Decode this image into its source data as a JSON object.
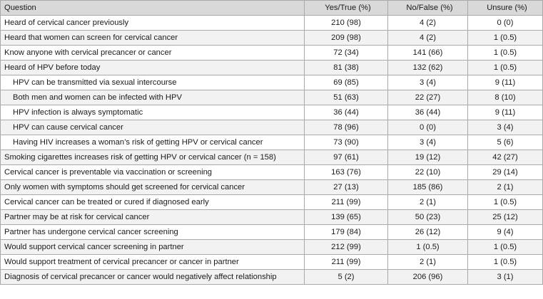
{
  "table": {
    "headers": [
      "Question",
      "Yes/True (%)",
      "No/False (%)",
      "Unsure (%)"
    ],
    "rows": [
      {
        "question": "Heard of cervical cancer previously",
        "yes": "210 (98)",
        "no": "4 (2)",
        "unsure": "0 (0)",
        "indent": false
      },
      {
        "question": "Heard that women can screen for cervical cancer",
        "yes": "209 (98)",
        "no": "4 (2)",
        "unsure": "1 (0.5)",
        "indent": false
      },
      {
        "question": "Know anyone with cervical precancer or cancer",
        "yes": "72 (34)",
        "no": "141 (66)",
        "unsure": "1 (0.5)",
        "indent": false
      },
      {
        "question": "Heard of HPV before today",
        "yes": "81 (38)",
        "no": "132 (62)",
        "unsure": "1 (0.5)",
        "indent": false
      },
      {
        "question": "HPV can be transmitted via sexual intercourse",
        "yes": "69 (85)",
        "no": "3 (4)",
        "unsure": "9 (11)",
        "indent": true
      },
      {
        "question": "Both men and women can be infected with HPV",
        "yes": "51 (63)",
        "no": "22 (27)",
        "unsure": "8 (10)",
        "indent": true
      },
      {
        "question": "HPV infection is always symptomatic",
        "yes": "36 (44)",
        "no": "36 (44)",
        "unsure": "9 (11)",
        "indent": true
      },
      {
        "question": "HPV can cause cervical cancer",
        "yes": "78 (96)",
        "no": "0 (0)",
        "unsure": "3 (4)",
        "indent": true
      },
      {
        "question": "Having HIV increases a woman’s risk of getting HPV or cervical cancer",
        "yes": "73 (90)",
        "no": "3 (4)",
        "unsure": "5 (6)",
        "indent": true
      },
      {
        "question": "Smoking cigarettes increases risk of getting HPV or cervical cancer (n = 158)",
        "yes": "97 (61)",
        "no": "19 (12)",
        "unsure": "42 (27)",
        "indent": false
      },
      {
        "question": "Cervical cancer is preventable via vaccination or screening",
        "yes": "163 (76)",
        "no": "22 (10)",
        "unsure": "29 (14)",
        "indent": false
      },
      {
        "question": "Only women with symptoms should get screened for cervical cancer",
        "yes": "27 (13)",
        "no": "185 (86)",
        "unsure": "2 (1)",
        "indent": false
      },
      {
        "question": "Cervical cancer can be treated or cured if diagnosed early",
        "yes": "211 (99)",
        "no": "2 (1)",
        "unsure": "1 (0.5)",
        "indent": false
      },
      {
        "question": "Partner may be at risk for cervical cancer",
        "yes": "139 (65)",
        "no": "50 (23)",
        "unsure": "25 (12)",
        "indent": false
      },
      {
        "question": "Partner has undergone cervical cancer screening",
        "yes": "179 (84)",
        "no": "26 (12)",
        "unsure": "9 (4)",
        "indent": false
      },
      {
        "question": "Would support cervical cancer screening in partner",
        "yes": "212 (99)",
        "no": "1 (0.5)",
        "unsure": "1 (0.5)",
        "indent": false
      },
      {
        "question": "Would support treatment of cervical precancer or cancer in partner",
        "yes": "211 (99)",
        "no": "2 (1)",
        "unsure": "1 (0.5)",
        "indent": false
      },
      {
        "question": "Diagnosis of cervical precancer or cancer would negatively affect relationship",
        "yes": "5 (2)",
        "no": "206 (96)",
        "unsure": "3 (1)",
        "indent": false
      }
    ]
  }
}
